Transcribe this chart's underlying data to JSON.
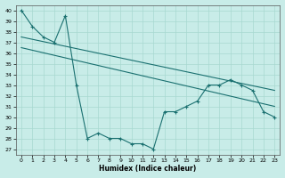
{
  "xlabel": "Humidex (Indice chaleur)",
  "xlim": [
    -0.5,
    23.5
  ],
  "ylim": [
    26.5,
    40.5
  ],
  "yticks": [
    27,
    28,
    29,
    30,
    31,
    32,
    33,
    34,
    35,
    36,
    37,
    38,
    39,
    40
  ],
  "xticks": [
    0,
    1,
    2,
    3,
    4,
    5,
    6,
    7,
    8,
    9,
    10,
    11,
    12,
    13,
    14,
    15,
    16,
    17,
    18,
    19,
    20,
    21,
    22,
    23
  ],
  "bg_color": "#c8ece8",
  "grid_color": "#a8d8d0",
  "line_color": "#1a7070",
  "series1_x": [
    0,
    1,
    2,
    3,
    4,
    5,
    6,
    7,
    8,
    9,
    10,
    11,
    12,
    13,
    14,
    15,
    16,
    17,
    18,
    19,
    20,
    21,
    22,
    23
  ],
  "series1_y": [
    40.0,
    38.5,
    37.5,
    37.0,
    39.5,
    33.0,
    28.0,
    28.5,
    28.0,
    28.0,
    27.5,
    27.5,
    27.0,
    30.5,
    30.5,
    31.0,
    31.5,
    33.0,
    33.0,
    33.5,
    33.0,
    32.5,
    30.5,
    30.0
  ],
  "series2_x": [
    0,
    23
  ],
  "series2_y": [
    37.5,
    32.5
  ],
  "series3_x": [
    0,
    23
  ],
  "series3_y": [
    36.5,
    31.0
  ]
}
